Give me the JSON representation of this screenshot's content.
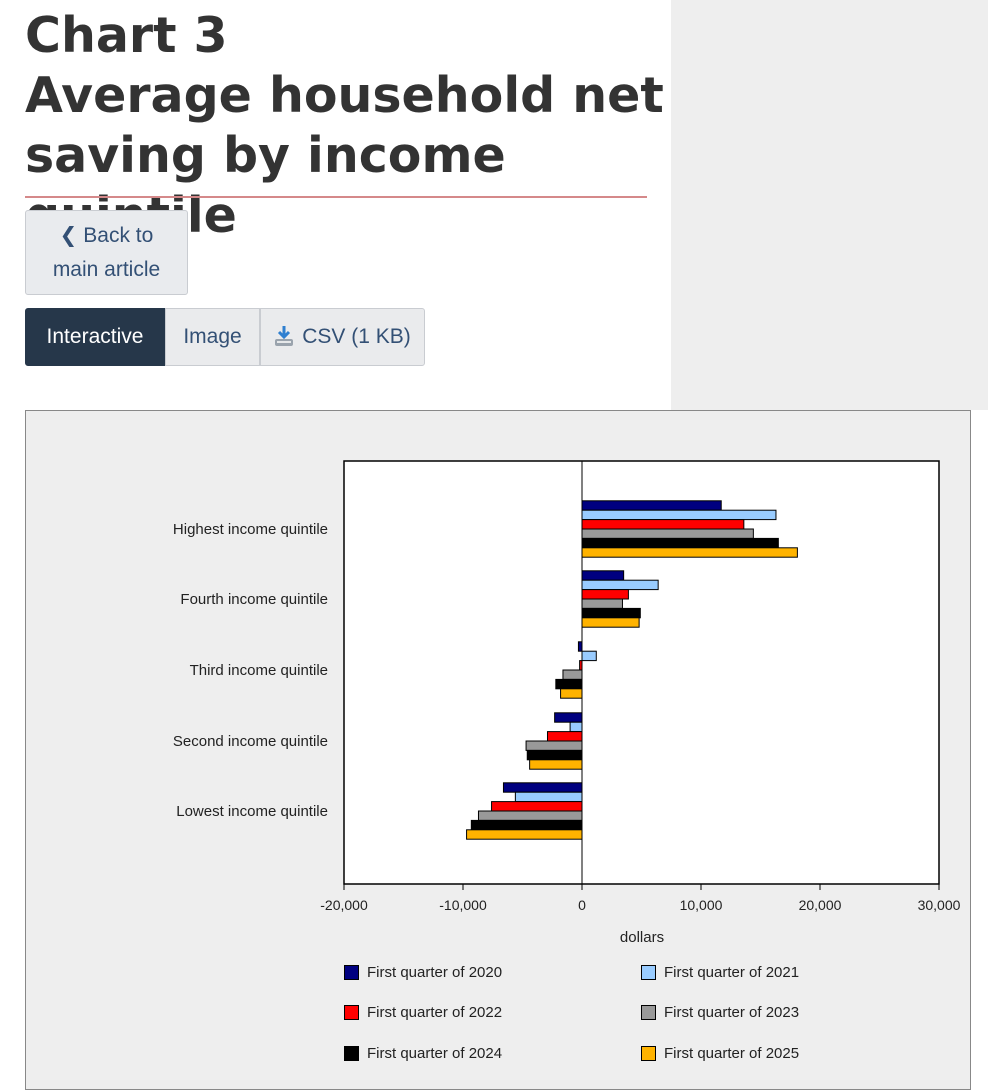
{
  "header": {
    "title_line1": "Chart 3",
    "title_line2": "Average household net",
    "title_line3": "saving by income quintile"
  },
  "back_button": {
    "line1": "Back to",
    "line2": "main article"
  },
  "tabs": [
    {
      "label": "Interactive",
      "active": true
    },
    {
      "label": "Image",
      "active": false
    },
    {
      "label": "CSV (1 KB)",
      "active": false,
      "icon": "download-icon"
    }
  ],
  "chart_data": {
    "type": "bar",
    "orientation": "horizontal",
    "title": "",
    "xlabel": "dollars",
    "ylabel": "",
    "xlim": [
      -20000,
      30000
    ],
    "xticks": [
      -20000,
      -10000,
      0,
      10000,
      20000,
      30000
    ],
    "xtick_labels": [
      "-20,000",
      "-10,000",
      "0",
      "10,000",
      "20,000",
      "30,000"
    ],
    "grid": false,
    "legend_position": "bottom",
    "categories": [
      "Highest income quintile",
      "Fourth income quintile",
      "Third income quintile",
      "Second income quintile",
      "Lowest income quintile"
    ],
    "series": [
      {
        "name": "First quarter of 2020",
        "color": "#000080",
        "values": [
          11700,
          3500,
          -300,
          -2300,
          -6600
        ]
      },
      {
        "name": "First quarter of 2021",
        "color": "#99ccff",
        "values": [
          16300,
          6400,
          1200,
          -1000,
          -5600
        ]
      },
      {
        "name": "First quarter of 2022",
        "color": "#ff0000",
        "values": [
          13600,
          3900,
          -200,
          -2900,
          -7600
        ]
      },
      {
        "name": "First quarter of 2023",
        "color": "#999999",
        "values": [
          14400,
          3400,
          -1600,
          -4700,
          -8700
        ]
      },
      {
        "name": "First quarter of 2024",
        "color": "#000000",
        "values": [
          16500,
          4900,
          -2200,
          -4600,
          -9300
        ]
      },
      {
        "name": "First quarter of 2025",
        "color": "#ffb300",
        "values": [
          18100,
          4800,
          -1800,
          -4400,
          -9700
        ]
      }
    ]
  }
}
